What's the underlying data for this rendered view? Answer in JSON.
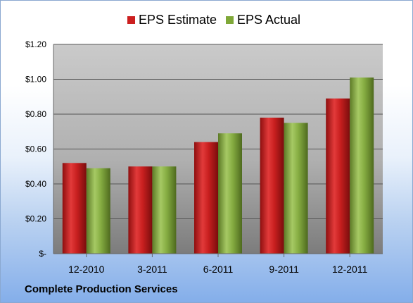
{
  "footer": {
    "company": "Complete Production Services"
  },
  "colors": {
    "estimate": "#cc1f1f",
    "actual": "#7fa838",
    "plot_bg_top": "#c8c8c8",
    "plot_bg_bottom": "#7f7f7f"
  },
  "chart_data": {
    "type": "bar",
    "categories": [
      "12-2010",
      "3-2011",
      "6-2011",
      "9-2011",
      "12-2011"
    ],
    "series": [
      {
        "name": "EPS Estimate",
        "values": [
          0.52,
          0.5,
          0.64,
          0.78,
          0.89
        ]
      },
      {
        "name": "EPS Actual",
        "values": [
          0.49,
          0.5,
          0.69,
          0.75,
          1.01
        ]
      }
    ],
    "yticks": [
      "$-",
      "$0.20",
      "$0.40",
      "$0.60",
      "$0.80",
      "$1.00",
      "$1.20"
    ],
    "ylim": [
      0,
      1.2
    ],
    "grid": true,
    "legend": "top"
  }
}
